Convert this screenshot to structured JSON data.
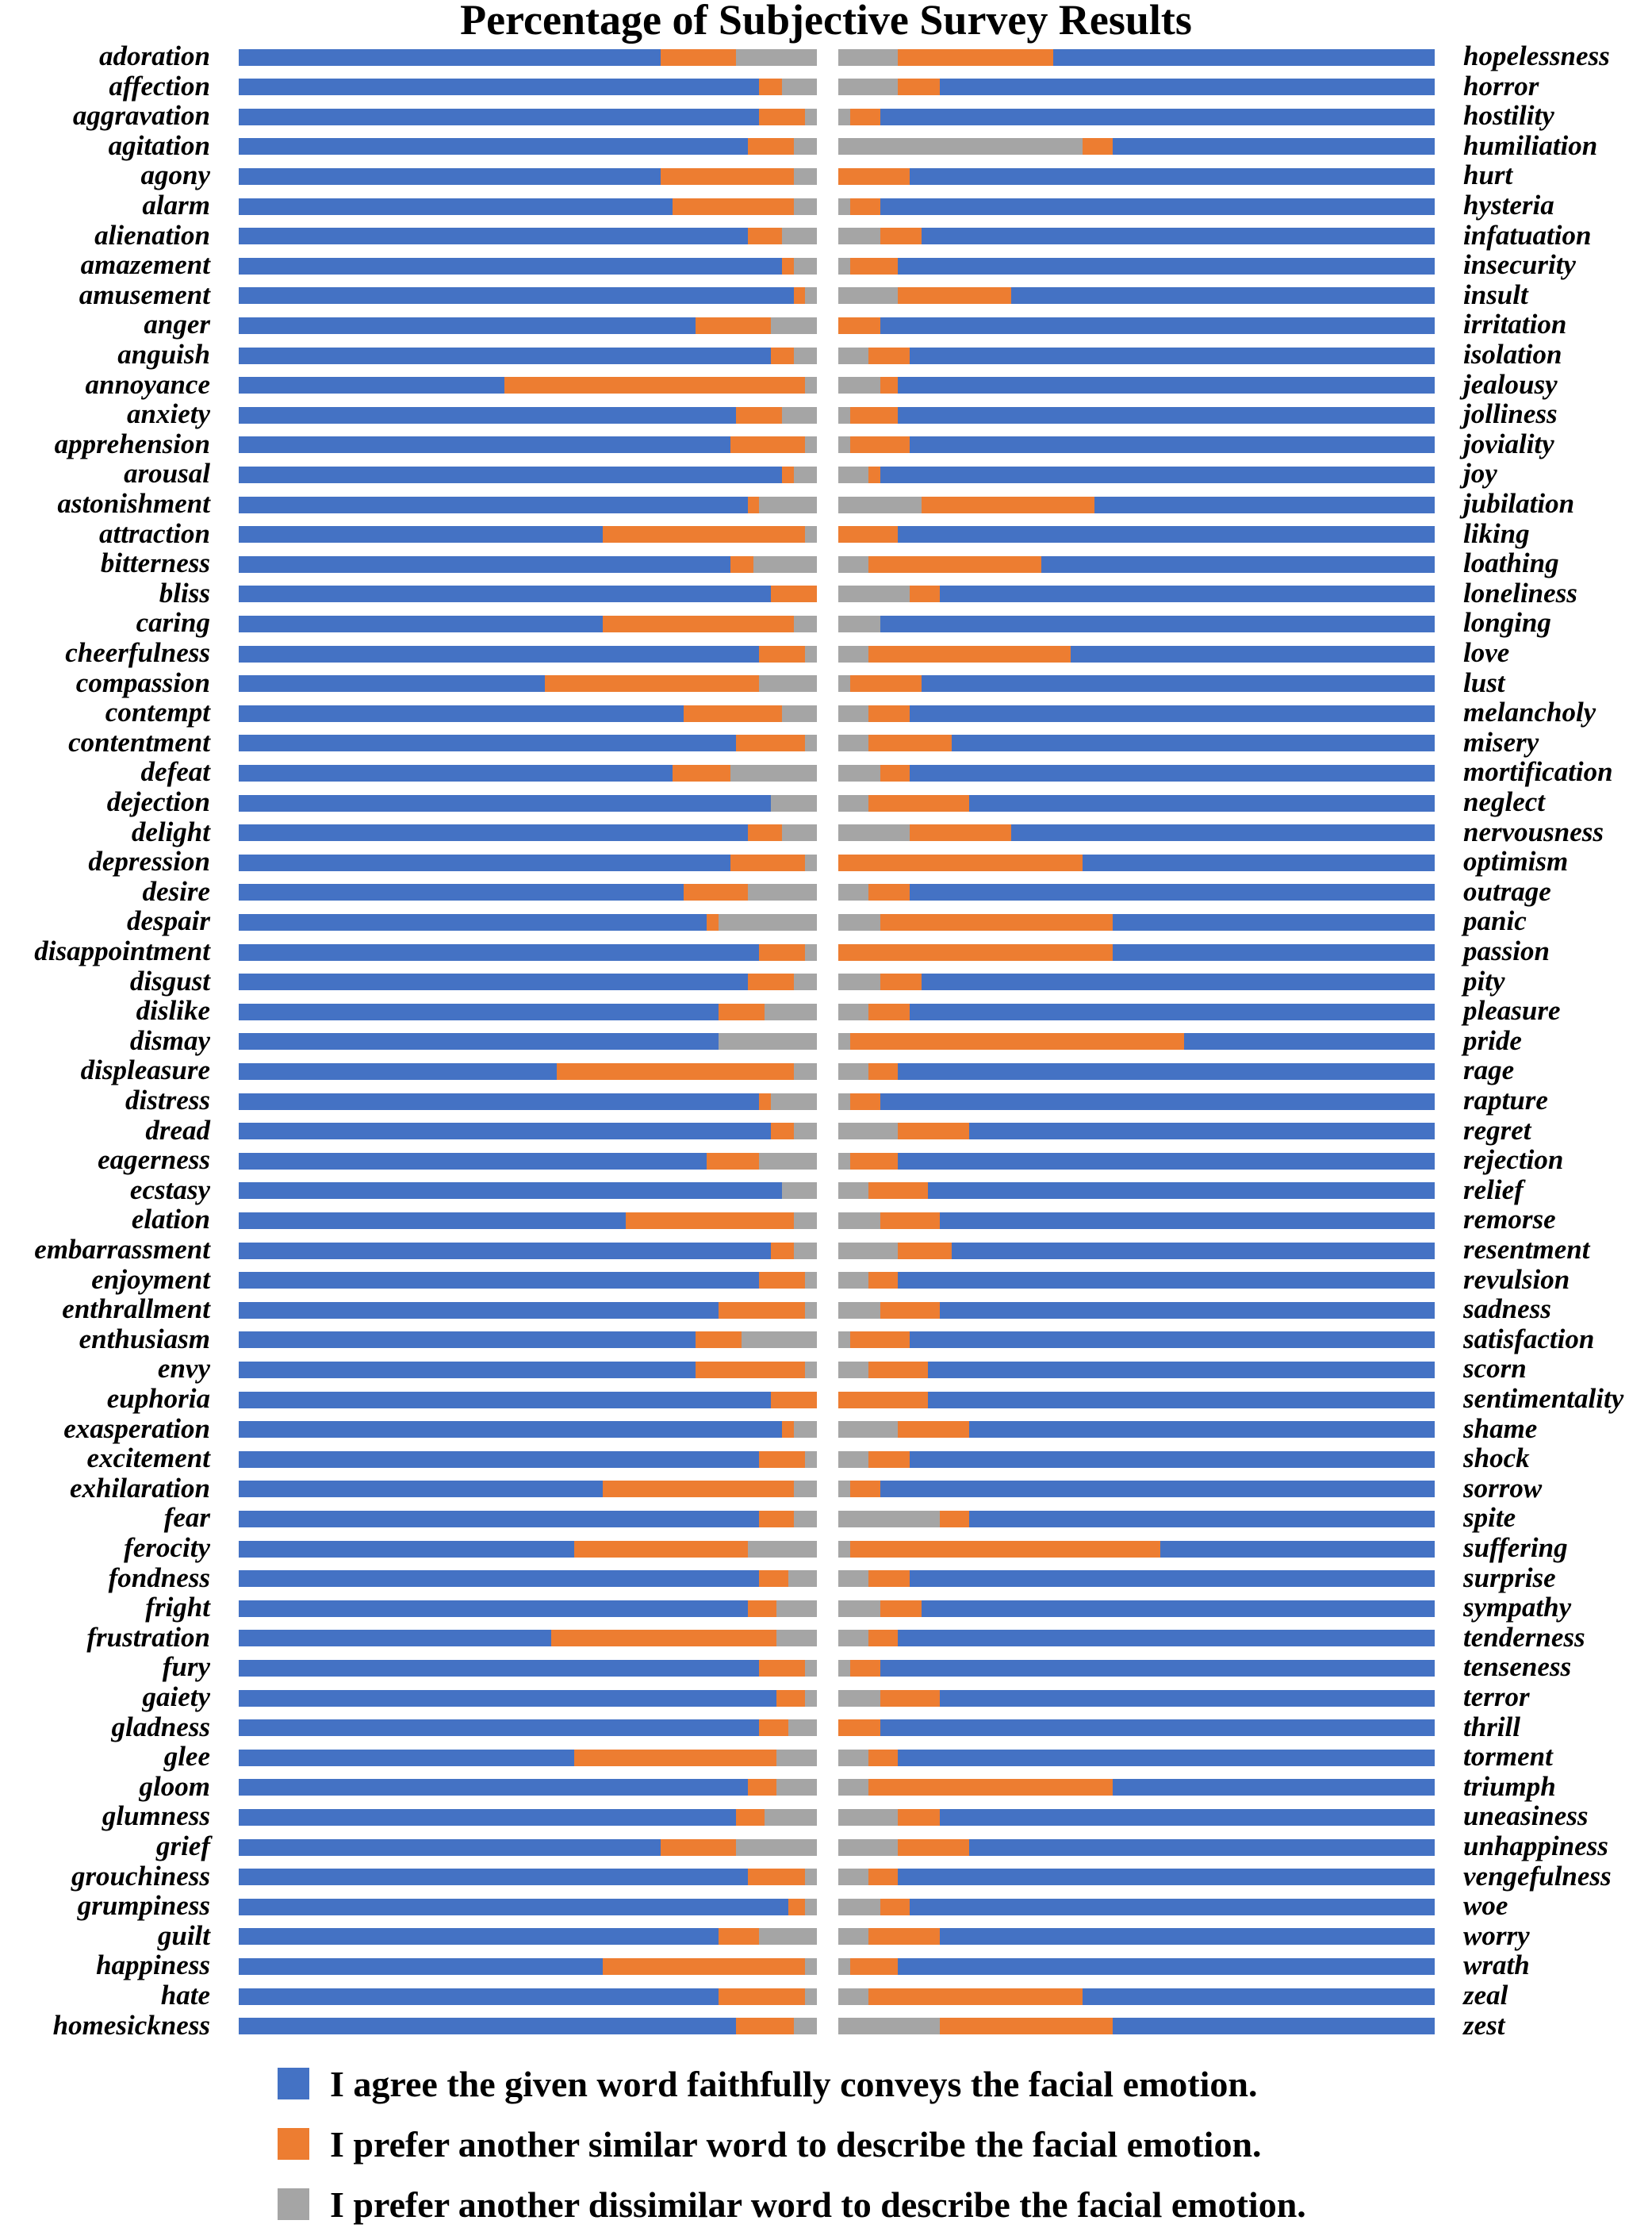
{
  "chart_data": [
    {
      "type": "bar",
      "orientation": "horizontal-stacked-100",
      "title": "Percentage of Subjective Survey Results",
      "categories": [
        "adoration",
        "affection",
        "aggravation",
        "agitation",
        "agony",
        "alarm",
        "alienation",
        "amazement",
        "amusement",
        "anger",
        "anguish",
        "annoyance",
        "anxiety",
        "apprehension",
        "arousal",
        "astonishment",
        "attraction",
        "bitterness",
        "bliss",
        "caring",
        "cheerfulness",
        "compassion",
        "contempt",
        "contentment",
        "defeat",
        "dejection",
        "delight",
        "depression",
        "desire",
        "despair",
        "disappointment",
        "disgust",
        "dislike",
        "dismay",
        "displeasure",
        "distress",
        "dread",
        "eagerness",
        "ecstasy",
        "elation",
        "embarrassment",
        "enjoyment",
        "enthrallment",
        "enthusiasm",
        "envy",
        "euphoria",
        "exasperation",
        "excitement",
        "exhilaration",
        "fear",
        "ferocity",
        "fondness",
        "fright",
        "frustration",
        "fury",
        "gaiety",
        "gladness",
        "glee",
        "gloom",
        "glumness",
        "grief",
        "grouchiness",
        "grumpiness",
        "guilt",
        "happiness",
        "hate",
        "homesickness"
      ],
      "series": [
        {
          "name": "agree",
          "values": [
            73,
            90,
            90,
            88,
            73,
            75,
            88,
            94,
            96,
            79,
            92,
            46,
            86,
            85,
            94,
            88,
            63,
            85,
            92,
            63,
            90,
            53,
            77,
            86,
            75,
            92,
            88,
            85,
            77,
            81,
            90,
            88,
            83,
            83,
            55,
            90,
            92,
            81,
            94,
            67,
            92,
            90,
            83,
            79,
            79,
            92,
            94,
            90,
            63,
            90,
            58,
            90,
            88,
            54,
            90,
            93,
            90,
            58,
            88,
            86,
            73,
            88,
            95,
            83,
            63,
            83,
            86
          ]
        },
        {
          "name": "similar",
          "values": [
            13,
            4,
            8,
            8,
            23,
            21,
            6,
            2,
            2,
            13,
            4,
            52,
            8,
            13,
            2,
            2,
            35,
            4,
            8,
            33,
            8,
            37,
            17,
            12,
            10,
            0,
            6,
            13,
            11,
            2,
            8,
            8,
            8,
            0,
            41,
            2,
            4,
            9,
            0,
            29,
            4,
            8,
            15,
            8,
            19,
            8,
            2,
            8,
            33,
            6,
            30,
            5,
            5,
            39,
            8,
            5,
            5,
            35,
            5,
            5,
            13,
            10,
            3,
            7,
            35,
            15,
            10
          ]
        },
        {
          "name": "dissimilar",
          "values": [
            14,
            6,
            2,
            4,
            4,
            4,
            6,
            4,
            2,
            8,
            4,
            2,
            6,
            2,
            4,
            10,
            2,
            11,
            0,
            4,
            2,
            10,
            6,
            2,
            15,
            8,
            6,
            2,
            12,
            17,
            2,
            4,
            9,
            17,
            4,
            8,
            4,
            10,
            6,
            4,
            4,
            2,
            2,
            13,
            2,
            0,
            4,
            2,
            4,
            4,
            12,
            5,
            7,
            7,
            2,
            2,
            5,
            7,
            7,
            9,
            14,
            2,
            2,
            10,
            2,
            2,
            4
          ]
        }
      ],
      "xlim": [
        0,
        100
      ],
      "segment_order": [
        "agree",
        "similar",
        "dissimilar"
      ],
      "label_side": "left"
    },
    {
      "type": "bar",
      "orientation": "horizontal-stacked-100",
      "categories": [
        "hopelessness",
        "horror",
        "hostility",
        "humiliation",
        "hurt",
        "hysteria",
        "infatuation",
        "insecurity",
        "insult",
        "irritation",
        "isolation",
        "jealousy",
        "jolliness",
        "joviality",
        "joy",
        "jubilation",
        "liking",
        "loathing",
        "loneliness",
        "longing",
        "love",
        "lust",
        "melancholy",
        "misery",
        "mortification",
        "neglect",
        "nervousness",
        "optimism",
        "outrage",
        "panic",
        "passion",
        "pity",
        "pleasure",
        "pride",
        "rage",
        "rapture",
        "regret",
        "rejection",
        "relief",
        "remorse",
        "resentment",
        "revulsion",
        "sadness",
        "satisfaction",
        "scorn",
        "sentimentality",
        "shame",
        "shock",
        "sorrow",
        "spite",
        "suffering",
        "surprise",
        "sympathy",
        "tenderness",
        "tenseness",
        "terror",
        "thrill",
        "torment",
        "triumph",
        "uneasiness",
        "unhappiness",
        "vengefulness",
        "woe",
        "worry",
        "wrath",
        "zeal",
        "zest"
      ],
      "series": [
        {
          "name": "agree",
          "values": [
            64,
            83,
            93,
            54,
            88,
            93,
            86,
            90,
            71,
            93,
            88,
            90,
            90,
            88,
            93,
            57,
            90,
            66,
            83,
            93,
            61,
            86,
            88,
            81,
            88,
            78,
            71,
            59,
            88,
            54,
            54,
            86,
            88,
            42,
            90,
            93,
            78,
            90,
            85,
            83,
            81,
            90,
            83,
            88,
            85,
            85,
            78,
            88,
            93,
            78,
            46,
            88,
            86,
            90,
            93,
            83,
            93,
            90,
            54,
            83,
            78,
            90,
            88,
            83,
            90,
            59,
            54
          ]
        },
        {
          "name": "similar",
          "values": [
            26,
            7,
            5,
            5,
            12,
            5,
            7,
            8,
            19,
            7,
            7,
            3,
            8,
            10,
            2,
            29,
            10,
            29,
            5,
            0,
            34,
            12,
            7,
            14,
            5,
            17,
            17,
            41,
            7,
            39,
            46,
            7,
            7,
            56,
            5,
            5,
            12,
            8,
            10,
            10,
            9,
            5,
            10,
            10,
            10,
            15,
            12,
            7,
            5,
            5,
            52,
            7,
            7,
            5,
            5,
            10,
            7,
            5,
            41,
            7,
            12,
            5,
            5,
            12,
            8,
            36,
            29
          ]
        },
        {
          "name": "dissimilar",
          "values": [
            10,
            10,
            2,
            41,
            0,
            2,
            7,
            2,
            10,
            0,
            5,
            7,
            2,
            2,
            5,
            14,
            0,
            5,
            12,
            7,
            5,
            2,
            5,
            5,
            7,
            5,
            12,
            0,
            5,
            7,
            0,
            7,
            5,
            2,
            5,
            2,
            10,
            2,
            5,
            7,
            10,
            5,
            7,
            2,
            5,
            0,
            10,
            5,
            2,
            17,
            2,
            5,
            7,
            5,
            2,
            7,
            0,
            5,
            5,
            10,
            10,
            5,
            7,
            5,
            2,
            5,
            17
          ]
        }
      ],
      "xlim": [
        0,
        100
      ],
      "segment_order": [
        "dissimilar",
        "similar",
        "agree"
      ],
      "label_side": "right"
    }
  ],
  "legend": [
    {
      "key": "agree",
      "label": "I agree the given word faithfully conveys the facial emotion.",
      "color": "#4472C4"
    },
    {
      "key": "similar",
      "label": "I prefer another similar word to describe the facial emotion.",
      "color": "#ED7D31"
    },
    {
      "key": "dissimilar",
      "label": "I prefer another dissimilar word to describe the facial emotion.",
      "color": "#A5A5A5"
    }
  ]
}
